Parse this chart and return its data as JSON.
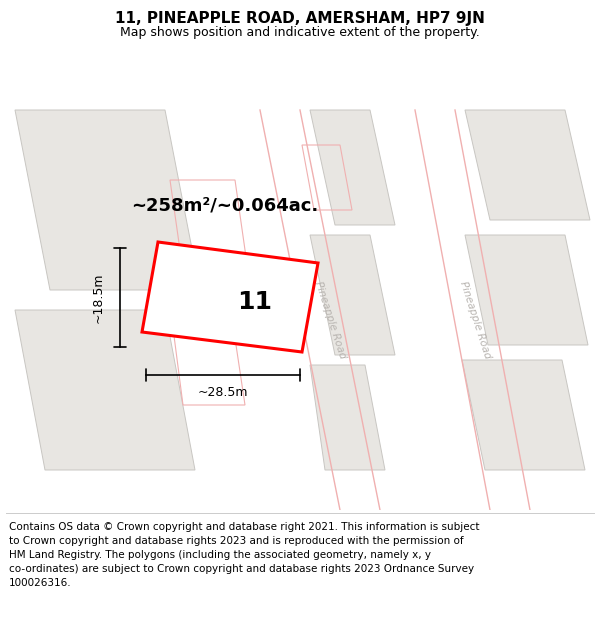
{
  "title": "11, PINEAPPLE ROAD, AMERSHAM, HP7 9JN",
  "subtitle": "Map shows position and indicative extent of the property.",
  "footer": "Contains OS data © Crown copyright and database right 2021. This information is subject\nto Crown copyright and database rights 2023 and is reproduced with the permission of\nHM Land Registry. The polygons (including the associated geometry, namely x, y\nco-ordinates) are subject to Crown copyright and database rights 2023 Ordnance Survey\n100026316.",
  "bg_color": "#f7f6f4",
  "building_fill": "#e8e6e2",
  "building_edge": "#c8c6c2",
  "plot_outline_color": "#ffaaaa",
  "plot_fill": "#f8f0f0",
  "highlight_border": "#ff0000",
  "highlight_fill": "#ffffff",
  "road_fill": "#f7f6f4",
  "road_line_color": "#f0b0b0",
  "area_text": "~258m²/~0.064ac.",
  "width_text": "~28.5m",
  "height_text": "~18.5m",
  "number_text": "11",
  "road_label": "Pineapple Road",
  "title_fontsize": 11,
  "subtitle_fontsize": 9,
  "footer_fontsize": 7.5,
  "annot_fontsize": 9,
  "area_fontsize": 13,
  "num_fontsize": 18
}
